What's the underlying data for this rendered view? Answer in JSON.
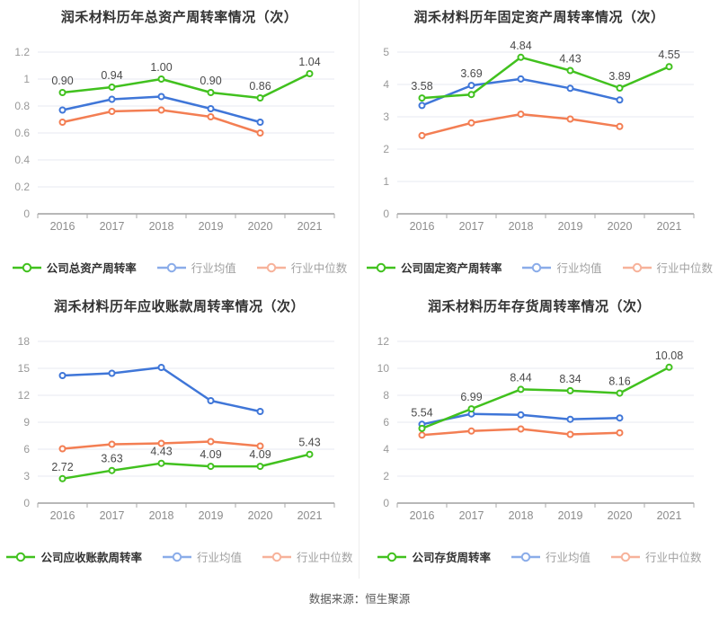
{
  "source_label": "数据来源：恒生聚源",
  "colors": {
    "company": "#41c11e",
    "mean": "#3f76d8",
    "median": "#f37e53",
    "mean_legend": "#8aace9",
    "median_legend": "#f7b29a",
    "grid": "#e7eaf2",
    "axis": "#6f6f6f",
    "tick": "#aaaaaa",
    "tick_label": "#999999",
    "x_label": "#8c8c8c",
    "point_label": "#4a4a4a"
  },
  "chart_data": [
    {
      "type": "line",
      "title": "润禾材料历年总资产周转率情况（次）",
      "categories": [
        "2016",
        "2017",
        "2018",
        "2019",
        "2020",
        "2021"
      ],
      "ylim": [
        0,
        1.2
      ],
      "ytick_labels": [
        "0",
        "0.2",
        "0.4",
        "0.6",
        "0.8",
        "1",
        "1.2"
      ],
      "grid": true,
      "legend_position": "bottom",
      "series": [
        {
          "name": "公司总资产周转率",
          "role": "company",
          "values": [
            0.9,
            0.94,
            1.0,
            0.9,
            0.86,
            1.04
          ],
          "point_labels": [
            "0.90",
            "0.94",
            "1.00",
            "0.90",
            "0.86",
            "1.04"
          ]
        },
        {
          "name": "行业均值",
          "role": "mean",
          "values": [
            0.77,
            0.85,
            0.87,
            0.78,
            0.68
          ]
        },
        {
          "name": "行业中位数",
          "role": "median",
          "values": [
            0.68,
            0.76,
            0.77,
            0.72,
            0.6
          ]
        }
      ]
    },
    {
      "type": "line",
      "title": "润禾材料历年固定资产周转率情况（次）",
      "categories": [
        "2016",
        "2017",
        "2018",
        "2019",
        "2020",
        "2021"
      ],
      "ylim": [
        0,
        5
      ],
      "ytick_labels": [
        "0",
        "1",
        "2",
        "3",
        "4",
        "5"
      ],
      "grid": true,
      "legend_position": "bottom",
      "series": [
        {
          "name": "公司固定资产周转率",
          "role": "company",
          "values": [
            3.58,
            3.69,
            4.84,
            4.43,
            3.89,
            4.55
          ],
          "point_labels": [
            "3.58",
            "3.69",
            "4.84",
            "4.43",
            "3.89",
            "4.55"
          ]
        },
        {
          "name": "行业均值",
          "role": "mean",
          "values": [
            3.35,
            3.97,
            4.17,
            3.88,
            3.52
          ]
        },
        {
          "name": "行业中位数",
          "role": "median",
          "values": [
            2.42,
            2.81,
            3.08,
            2.93,
            2.7
          ]
        }
      ]
    },
    {
      "type": "line",
      "title": "润禾材料历年应收账款周转率情况（次）",
      "categories": [
        "2016",
        "2017",
        "2018",
        "2019",
        "2020",
        "2021"
      ],
      "ylim": [
        0,
        18
      ],
      "ytick_labels": [
        "0",
        "3",
        "6",
        "9",
        "12",
        "15",
        "18"
      ],
      "grid": true,
      "legend_position": "bottom",
      "series": [
        {
          "name": "公司应收账款周转率",
          "role": "company",
          "values": [
            2.72,
            3.63,
            4.43,
            4.09,
            4.09,
            5.43
          ],
          "point_labels": [
            "2.72",
            "3.63",
            "4.43",
            "4.09",
            "4.09",
            "5.43"
          ]
        },
        {
          "name": "行业均值",
          "role": "mean",
          "values": [
            14.2,
            14.45,
            15.1,
            11.4,
            10.2
          ]
        },
        {
          "name": "行业中位数",
          "role": "median",
          "values": [
            6.05,
            6.55,
            6.65,
            6.85,
            6.35
          ]
        }
      ]
    },
    {
      "type": "line",
      "title": "润禾材料历年存货周转率情况（次）",
      "categories": [
        "2016",
        "2017",
        "2018",
        "2019",
        "2020",
        "2021"
      ],
      "ylim": [
        0,
        12
      ],
      "ytick_labels": [
        "0",
        "2",
        "4",
        "6",
        "8",
        "10",
        "12"
      ],
      "grid": true,
      "legend_position": "bottom",
      "series": [
        {
          "name": "公司存货周转率",
          "role": "company",
          "values": [
            5.54,
            6.99,
            8.44,
            8.34,
            8.16,
            10.08
          ],
          "point_labels": [
            "5.54",
            "6.99",
            "8.44",
            "8.34",
            "8.16",
            "10.08"
          ]
        },
        {
          "name": "行业均值",
          "role": "mean",
          "values": [
            5.85,
            6.62,
            6.55,
            6.22,
            6.32
          ]
        },
        {
          "name": "行业中位数",
          "role": "median",
          "values": [
            5.05,
            5.35,
            5.5,
            5.1,
            5.22
          ]
        }
      ]
    }
  ]
}
